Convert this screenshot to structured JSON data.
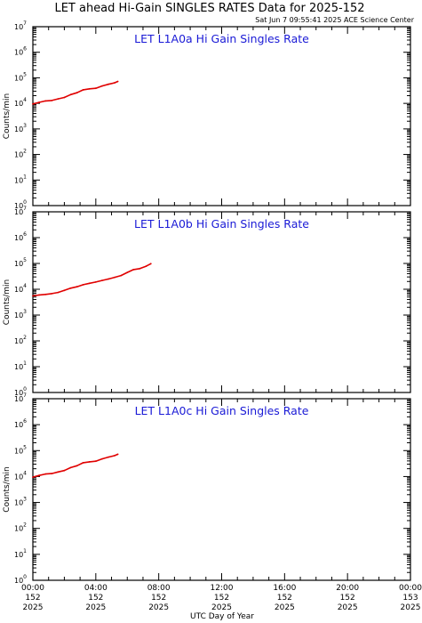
{
  "title": "LET ahead Hi-Gain SINGLES RATES Data for 2025-152",
  "timestamp": "Sat Jun  7 09:55:41 2025 ACE Science Center",
  "xlabel": "UTC Day of Year",
  "ylabel": "Counts/min",
  "colors": {
    "series": "#e00000",
    "panel_title": "#1a1ad6",
    "frame": "#000000"
  },
  "x_ticks": [
    {
      "hour": 0,
      "lines": [
        "00:00",
        "152",
        "2025"
      ]
    },
    {
      "hour": 4,
      "lines": [
        "04:00",
        "152",
        "2025"
      ]
    },
    {
      "hour": 8,
      "lines": [
        "08:00",
        "152",
        "2025"
      ]
    },
    {
      "hour": 12,
      "lines": [
        "12:00",
        "152",
        "2025"
      ]
    },
    {
      "hour": 16,
      "lines": [
        "16:00",
        "152",
        "2025"
      ]
    },
    {
      "hour": 20,
      "lines": [
        "20:00",
        "152",
        "2025"
      ]
    },
    {
      "hour": 24,
      "lines": [
        "00:00",
        "153",
        "2025"
      ]
    }
  ],
  "chart_data": [
    {
      "type": "line",
      "title": "LET L1A0a Hi Gain Singles Rate",
      "ylabel": "Counts/min",
      "xlabel": "",
      "xlim": [
        0,
        24
      ],
      "ylim": [
        1,
        10000000
      ],
      "yscale": "log",
      "ytick_exponents": [
        0,
        1,
        2,
        3,
        4,
        5,
        6,
        7
      ],
      "series": [
        {
          "x": [
            0.0,
            0.4,
            0.8,
            1.2,
            1.6,
            2.0,
            2.4,
            2.8,
            3.2,
            3.6,
            4.0,
            4.4,
            4.8,
            5.2,
            5.4
          ],
          "y": [
            9500,
            11000,
            12500,
            13000,
            15000,
            17000,
            22000,
            26000,
            34000,
            37000,
            39000,
            48000,
            56000,
            64000,
            72000
          ]
        }
      ]
    },
    {
      "type": "line",
      "title": "LET L1A0b Hi Gain Singles Rate",
      "ylabel": "Counts/min",
      "xlabel": "",
      "xlim": [
        0,
        24
      ],
      "ylim": [
        1,
        10000000
      ],
      "yscale": "log",
      "ytick_exponents": [
        0,
        1,
        2,
        3,
        4,
        5,
        6,
        7
      ],
      "series": [
        {
          "x": [
            0.0,
            0.4,
            0.8,
            1.2,
            1.6,
            2.0,
            2.4,
            2.8,
            3.2,
            3.6,
            4.0,
            4.4,
            4.8,
            5.2,
            5.6,
            6.0,
            6.4,
            6.8,
            7.2,
            7.5
          ],
          "y": [
            5500,
            6000,
            6300,
            6800,
            7500,
            9000,
            11000,
            12500,
            15000,
            17000,
            19000,
            22000,
            25000,
            29000,
            34000,
            45000,
            58000,
            63000,
            78000,
            98000
          ]
        }
      ]
    },
    {
      "type": "line",
      "title": "LET L1A0c Hi Gain Singles Rate",
      "ylabel": "Counts/min",
      "xlabel": "",
      "xlim": [
        0,
        24
      ],
      "ylim": [
        1,
        10000000
      ],
      "yscale": "log",
      "ytick_exponents": [
        0,
        1,
        2,
        3,
        4,
        5,
        6,
        7
      ],
      "series": [
        {
          "x": [
            0.0,
            0.4,
            0.8,
            1.2,
            1.6,
            2.0,
            2.4,
            2.8,
            3.2,
            3.6,
            4.0,
            4.4,
            4.8,
            5.2,
            5.4
          ],
          "y": [
            9500,
            11000,
            12500,
            13000,
            15000,
            17000,
            22000,
            26000,
            34000,
            37000,
            39000,
            48000,
            56000,
            64000,
            72000
          ]
        }
      ]
    }
  ]
}
